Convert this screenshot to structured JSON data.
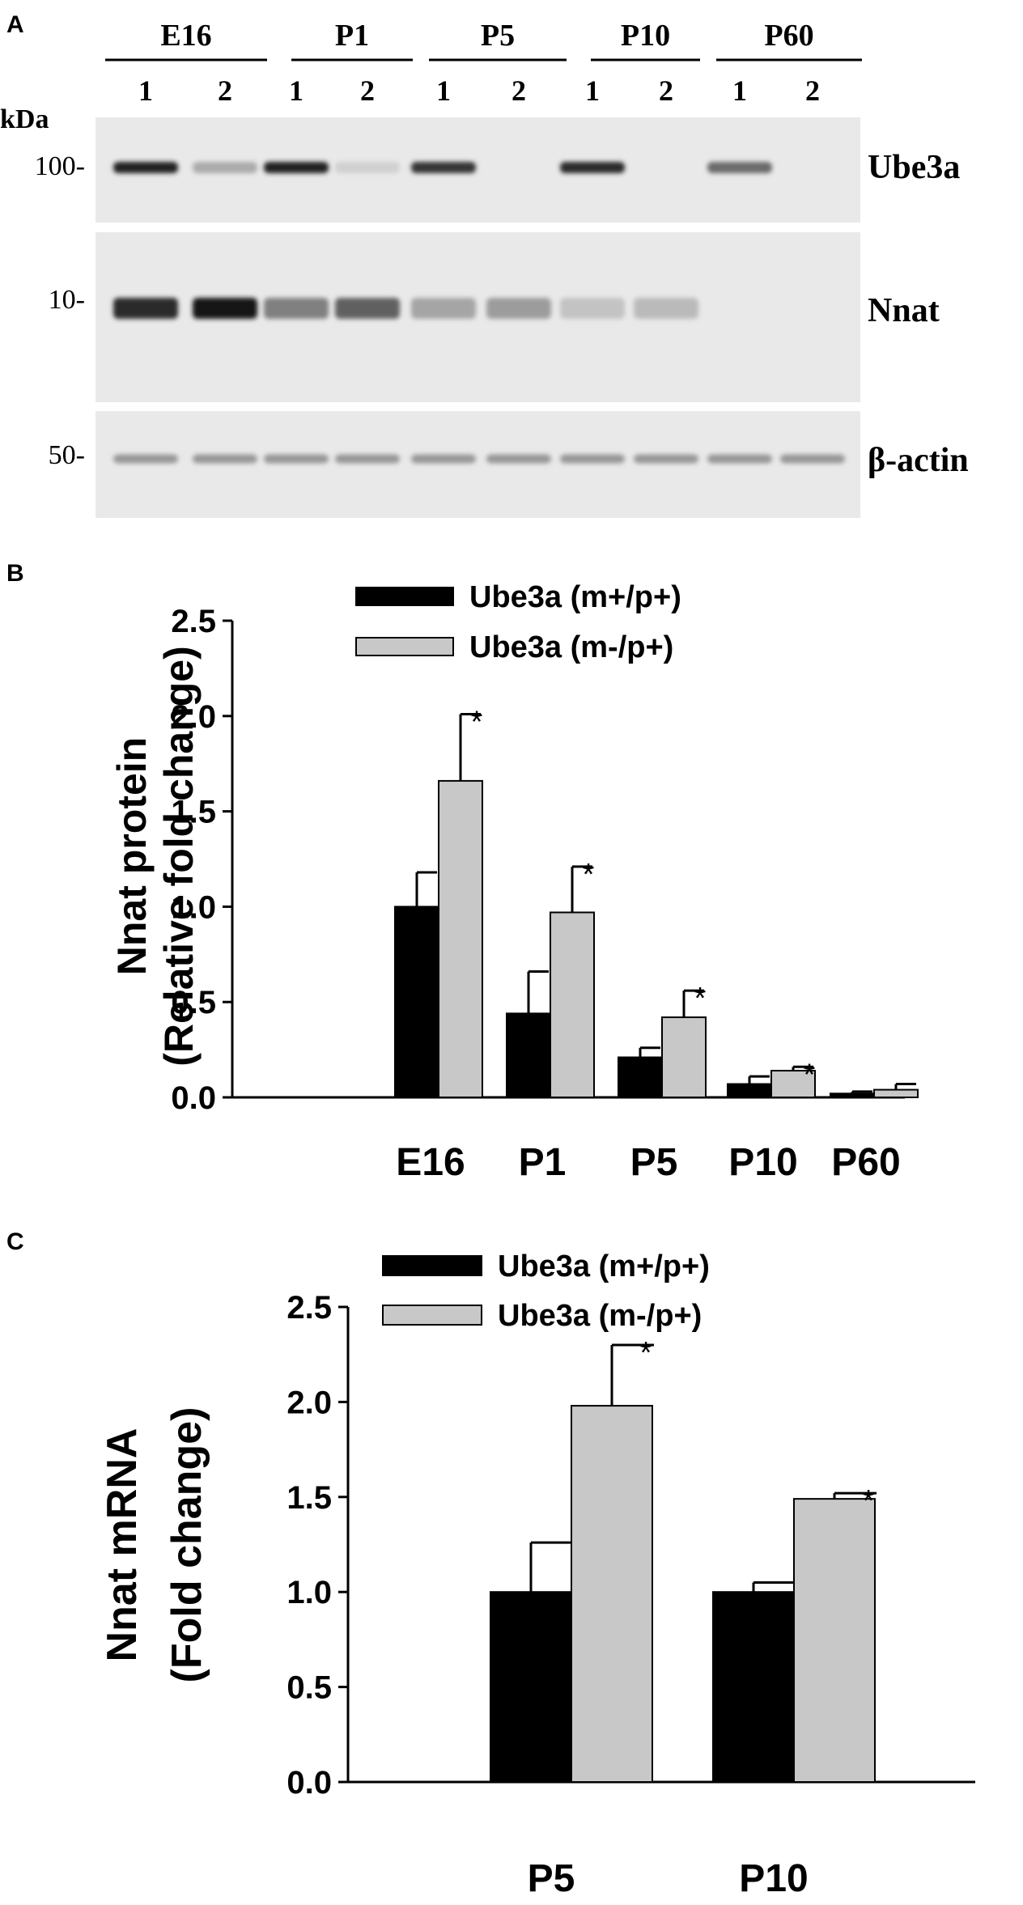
{
  "panel_letters": {
    "a": "A",
    "b": "B",
    "c": "C"
  },
  "blot": {
    "groups": [
      "E16",
      "P1",
      "P5",
      "P10",
      "P60"
    ],
    "lane_labels": [
      "1",
      "2"
    ],
    "kda_label": "kDa",
    "strips": [
      {
        "name": "Ube3a",
        "marker": "100-",
        "band_intensity": [
          0.9,
          0.25,
          0.9,
          0.08,
          0.8,
          0.0,
          0.85,
          0.0,
          0.55,
          0.0
        ]
      },
      {
        "name": "Nnat",
        "marker": "10-",
        "band_intensity": [
          0.85,
          0.95,
          0.45,
          0.6,
          0.28,
          0.32,
          0.14,
          0.18,
          0.0,
          0.0
        ]
      },
      {
        "name": "β-actin",
        "marker": "50-",
        "band_intensity": [
          0.35,
          0.35,
          0.35,
          0.35,
          0.35,
          0.35,
          0.35,
          0.35,
          0.35,
          0.35
        ]
      }
    ]
  },
  "chart_data": [
    {
      "type": "bar",
      "categories": [
        "E16",
        "P1",
        "P5",
        "P10",
        "P60"
      ],
      "ylabel": [
        "Nnat protein",
        "(Relative fold change)"
      ],
      "ylim": [
        0,
        2.5
      ],
      "yticks": [
        "0.0",
        "0.5",
        "1.0",
        "1.5",
        "2.0",
        "2.5"
      ],
      "legend_position": "top",
      "series": [
        {
          "name": "Ube3a (m+/p+)",
          "color": "#000000",
          "values": [
            1.0,
            0.44,
            0.21,
            0.07,
            0.02
          ],
          "errors": [
            0.18,
            0.22,
            0.05,
            0.04,
            0.01
          ]
        },
        {
          "name": "Ube3a (m-/p+)",
          "color": "#c8c8c8",
          "values": [
            1.66,
            0.97,
            0.42,
            0.14,
            0.04
          ],
          "errors": [
            0.35,
            0.24,
            0.14,
            0.02,
            0.03
          ]
        }
      ],
      "significance": [
        "*",
        "*",
        "*",
        "*",
        ""
      ]
    },
    {
      "type": "bar",
      "categories": [
        "P5",
        "P10"
      ],
      "ylabel": [
        "Nnat mRNA",
        "(Fold change)"
      ],
      "ylim": [
        0,
        2.5
      ],
      "yticks": [
        "0.0",
        "0.5",
        "1.0",
        "1.5",
        "2.0",
        "2.5"
      ],
      "legend_position": "top",
      "series": [
        {
          "name": "Ube3a (m+/p+)",
          "color": "#000000",
          "values": [
            1.0,
            1.0
          ],
          "errors": [
            0.26,
            0.05
          ]
        },
        {
          "name": "Ube3a (m-/p+)",
          "color": "#c8c8c8",
          "values": [
            1.98,
            1.49
          ],
          "errors": [
            0.32,
            0.03
          ]
        }
      ],
      "significance": [
        "*",
        "*"
      ]
    }
  ]
}
